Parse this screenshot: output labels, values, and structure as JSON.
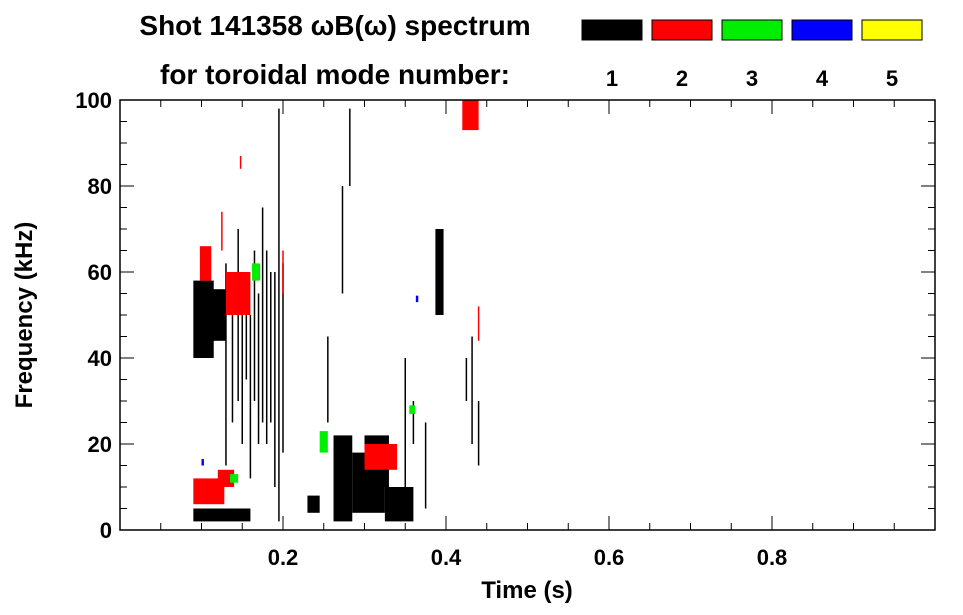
{
  "chart_data": {
    "type": "scatter",
    "title": "Shot 141358 ωB(ω) spectrum",
    "subtitle": "for toroidal mode number:",
    "xlabel": "Time (s)",
    "ylabel": "Frequency (kHz)",
    "xlim": [
      0.0,
      1.0
    ],
    "ylim": [
      0,
      100
    ],
    "x_ticks": [
      0.2,
      0.4,
      0.6,
      0.8
    ],
    "x_tick_labels": [
      "0.2",
      "0.4",
      "0.6",
      "0.8"
    ],
    "y_ticks": [
      0,
      20,
      40,
      60,
      80,
      100
    ],
    "y_tick_labels": [
      "0",
      "20",
      "40",
      "60",
      "80",
      "100"
    ],
    "x_minor_step": 0.05,
    "y_minor_step": 5,
    "grid": false,
    "legend": {
      "placement": "top-right",
      "entries": [
        {
          "label": "1",
          "color": "#000000"
        },
        {
          "label": "2",
          "color": "#ff0000"
        },
        {
          "label": "3",
          "color": "#00ee00"
        },
        {
          "label": "4",
          "color": "#0000ff"
        },
        {
          "label": "5",
          "color": "#ffff00"
        }
      ]
    },
    "series": [
      {
        "name": "n=1",
        "color": "#000000",
        "regions": [
          {
            "t0": 0.09,
            "t1": 0.115,
            "f0": 40,
            "f1": 58
          },
          {
            "t0": 0.105,
            "t1": 0.13,
            "f0": 44,
            "f1": 56
          },
          {
            "t0": 0.09,
            "t1": 0.16,
            "f0": 2,
            "f1": 5
          },
          {
            "t0": 0.23,
            "t1": 0.245,
            "f0": 4,
            "f1": 8
          },
          {
            "t0": 0.262,
            "t1": 0.285,
            "f0": 2,
            "f1": 22
          },
          {
            "t0": 0.285,
            "t1": 0.325,
            "f0": 4,
            "f1": 18
          },
          {
            "t0": 0.325,
            "t1": 0.36,
            "f0": 2,
            "f1": 10
          },
          {
            "t0": 0.387,
            "t1": 0.397,
            "f0": 50,
            "f1": 70
          },
          {
            "t0": 0.3,
            "t1": 0.33,
            "f0": 10,
            "f1": 22
          }
        ],
        "lines": [
          {
            "t": 0.13,
            "f0": 15,
            "f1": 62
          },
          {
            "t": 0.138,
            "f0": 25,
            "f1": 58
          },
          {
            "t": 0.145,
            "f0": 30,
            "f1": 70
          },
          {
            "t": 0.15,
            "f0": 20,
            "f1": 55
          },
          {
            "t": 0.155,
            "f0": 35,
            "f1": 60
          },
          {
            "t": 0.16,
            "f0": 12,
            "f1": 50
          },
          {
            "t": 0.165,
            "f0": 30,
            "f1": 65
          },
          {
            "t": 0.17,
            "f0": 20,
            "f1": 55
          },
          {
            "t": 0.175,
            "f0": 25,
            "f1": 75
          },
          {
            "t": 0.18,
            "f0": 20,
            "f1": 65
          },
          {
            "t": 0.185,
            "f0": 25,
            "f1": 60
          },
          {
            "t": 0.19,
            "f0": 10,
            "f1": 60
          },
          {
            "t": 0.195,
            "f0": 2,
            "f1": 98
          },
          {
            "t": 0.2,
            "f0": 18,
            "f1": 62
          },
          {
            "t": 0.273,
            "f0": 55,
            "f1": 80
          },
          {
            "t": 0.282,
            "f0": 80,
            "f1": 98
          },
          {
            "t": 0.39,
            "f0": 50,
            "f1": 68
          },
          {
            "t": 0.425,
            "f0": 30,
            "f1": 40
          },
          {
            "t": 0.432,
            "f0": 20,
            "f1": 45
          },
          {
            "t": 0.44,
            "f0": 15,
            "f1": 30
          },
          {
            "t": 0.375,
            "f0": 5,
            "f1": 25
          },
          {
            "t": 0.255,
            "f0": 25,
            "f1": 45
          },
          {
            "t": 0.35,
            "f0": 5,
            "f1": 40
          },
          {
            "t": 0.36,
            "f0": 20,
            "f1": 30
          }
        ]
      },
      {
        "name": "n=2",
        "color": "#ff0000",
        "regions": [
          {
            "t0": 0.098,
            "t1": 0.112,
            "f0": 58,
            "f1": 66
          },
          {
            "t0": 0.09,
            "t1": 0.128,
            "f0": 6,
            "f1": 12
          },
          {
            "t0": 0.13,
            "t1": 0.16,
            "f0": 50,
            "f1": 60
          },
          {
            "t0": 0.42,
            "t1": 0.44,
            "f0": 93,
            "f1": 100
          },
          {
            "t0": 0.3,
            "t1": 0.34,
            "f0": 14,
            "f1": 20
          },
          {
            "t0": 0.12,
            "t1": 0.14,
            "f0": 10,
            "f1": 14
          }
        ],
        "lines": [
          {
            "t": 0.2,
            "f0": 55,
            "f1": 65
          },
          {
            "t": 0.44,
            "f0": 44,
            "f1": 52
          },
          {
            "t": 0.125,
            "f0": 65,
            "f1": 74
          },
          {
            "t": 0.148,
            "f0": 84,
            "f1": 87
          }
        ]
      },
      {
        "name": "n=3",
        "color": "#00ee00",
        "regions": [
          {
            "t0": 0.162,
            "t1": 0.172,
            "f0": 58,
            "f1": 62
          },
          {
            "t0": 0.135,
            "t1": 0.145,
            "f0": 11,
            "f1": 13
          },
          {
            "t0": 0.245,
            "t1": 0.255,
            "f0": 18,
            "f1": 23
          },
          {
            "t0": 0.355,
            "t1": 0.362,
            "f0": 27,
            "f1": 29
          }
        ],
        "lines": []
      },
      {
        "name": "n=4",
        "color": "#0000ff",
        "regions": [
          {
            "t0": 0.363,
            "t1": 0.366,
            "f0": 53,
            "f1": 54.5
          },
          {
            "t0": 0.1,
            "t1": 0.103,
            "f0": 15,
            "f1": 16.5
          }
        ],
        "lines": []
      },
      {
        "name": "n=5",
        "color": "#ffff00",
        "regions": [],
        "lines": []
      }
    ]
  }
}
